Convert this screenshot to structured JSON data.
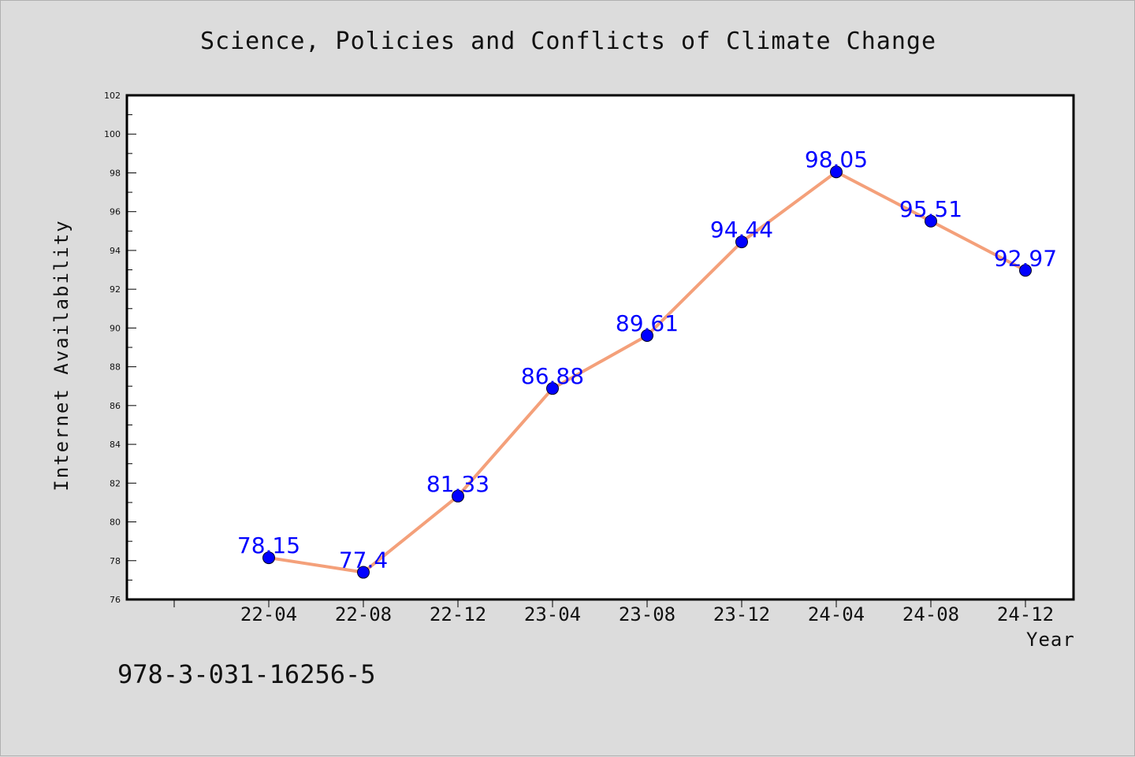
{
  "chart_data": {
    "type": "line",
    "title": "Science, Policies and Conflicts of Climate Change",
    "xlabel": "Year",
    "ylabel": "Internet Availability",
    "categories": [
      "22-04",
      "22-08",
      "22-12",
      "23-04",
      "23-08",
      "23-12",
      "24-04",
      "24-08",
      "24-12"
    ],
    "series": [
      {
        "values": [
          78.15,
          77.4,
          81.33,
          86.88,
          89.61,
          94.44,
          98.05,
          95.51,
          92.97
        ],
        "data_labels": [
          "78.15",
          "77.4",
          "81.33",
          "86.88",
          "89.61",
          "94.44",
          "98.05",
          "95.51",
          "92.97"
        ],
        "line_color": "#f4a07a",
        "marker_color": "#0000ff"
      }
    ],
    "ylim": [
      76,
      102
    ],
    "yticks": [
      "76",
      "78",
      "80",
      "82",
      "84",
      "86",
      "88",
      "90",
      "92",
      "94",
      "96",
      "98",
      "100",
      "102"
    ],
    "grid": false,
    "label_color": "#0000ff"
  },
  "footer": {
    "isbn": "978-3-031-16256-5"
  }
}
